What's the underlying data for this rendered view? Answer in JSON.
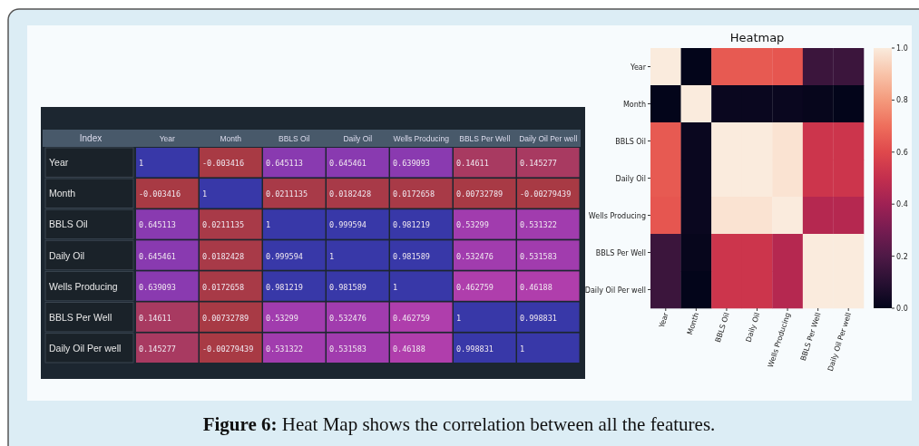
{
  "chart_data": [
    {
      "type": "heatmap",
      "ylabel": "Index",
      "categories": [
        "Year",
        "Month",
        "BBLS Oil",
        "Daily Oil",
        "Wells Producing",
        "BBLS Per Well",
        "Daily Oil Per well"
      ],
      "y_categories": [
        "Year",
        "Month",
        "BBLS Oil",
        "Daily Oil",
        "Wells Producing",
        "BBLS Per Well",
        "Daily Oil Per well"
      ],
      "cells": [
        [
          1,
          -0.003416,
          0.645113,
          0.645461,
          0.639093,
          0.14611,
          0.145277
        ],
        [
          -0.003416,
          1,
          0.0211135,
          0.0182428,
          0.0172658,
          0.00732789,
          -0.00279439
        ],
        [
          0.645113,
          0.0211135,
          1,
          0.999594,
          0.981219,
          0.53299,
          0.531322
        ],
        [
          0.645461,
          0.0182428,
          0.999594,
          1,
          0.981589,
          0.532476,
          0.531583
        ],
        [
          0.639093,
          0.0172658,
          0.981219,
          0.981589,
          1,
          0.462759,
          0.46188
        ],
        [
          0.14611,
          0.00732789,
          0.53299,
          0.532476,
          0.462759,
          1,
          0.998831
        ],
        [
          0.145277,
          -0.00279439,
          0.531322,
          0.531583,
          0.46188,
          0.998831,
          1
        ]
      ],
      "data_labels": true
    },
    {
      "type": "heatmap",
      "title": "Heatmap",
      "categories": [
        "Year",
        "Month",
        "BBLS Oil",
        "Daily Oil",
        "Wells Producing",
        "BBLS Per Well",
        "Daily Oil Per well"
      ],
      "y_categories": [
        "Year",
        "Month",
        "BBLS Oil",
        "Daily Oil",
        "Wells Producing",
        "BBLS Per Well",
        "Daily Oil Per well"
      ],
      "cells": [
        [
          1,
          0,
          0.65,
          0.65,
          0.64,
          0.15,
          0.15
        ],
        [
          0,
          1,
          0.02,
          0.02,
          0.02,
          0.01,
          0
        ],
        [
          0.65,
          0.02,
          1,
          1,
          0.98,
          0.53,
          0.53
        ],
        [
          0.65,
          0.02,
          1,
          1,
          0.98,
          0.53,
          0.53
        ],
        [
          0.64,
          0.02,
          0.98,
          0.98,
          1,
          0.46,
          0.46
        ],
        [
          0.15,
          0.01,
          0.53,
          0.53,
          0.46,
          1,
          1
        ],
        [
          0.15,
          0,
          0.53,
          0.53,
          0.46,
          1,
          1
        ]
      ],
      "clim": [
        0,
        1
      ],
      "cticks": [
        {
          "value": 0,
          "label": "0.0"
        },
        0.2,
        0.4,
        0.6,
        0.8,
        {
          "value": 1,
          "label": "1.0"
        }
      ],
      "annotations": [
        "Figure 6: Heat Map shows the correlation between all the features."
      ]
    }
  ]
}
